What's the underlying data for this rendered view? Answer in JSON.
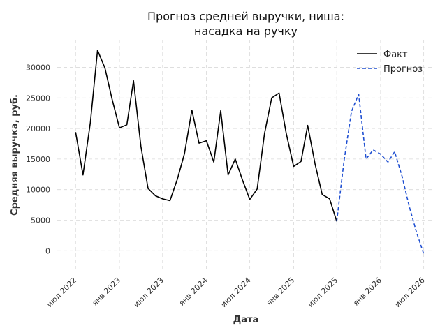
{
  "chart_data": {
    "type": "line",
    "title_line1": "Прогноз средней выручки, ниша:",
    "title_line2": "насадка на ручку",
    "xlabel": "Дата",
    "ylabel": "Средняя выручка, руб.",
    "ylim": [
      -3500,
      34500
    ],
    "yticks": [
      0,
      5000,
      10000,
      15000,
      20000,
      25000,
      30000
    ],
    "xlim": [
      "2022-04-15",
      "2026-08-15"
    ],
    "xticks": [
      {
        "date": "2022-07-01",
        "label": "июл 2022"
      },
      {
        "date": "2023-01-01",
        "label": "янв 2023"
      },
      {
        "date": "2023-07-01",
        "label": "июл 2023"
      },
      {
        "date": "2024-01-01",
        "label": "янв 2024"
      },
      {
        "date": "2024-07-01",
        "label": "июл 2024"
      },
      {
        "date": "2025-01-01",
        "label": "янв 2025"
      },
      {
        "date": "2025-07-01",
        "label": "июл 2025"
      },
      {
        "date": "2026-01-01",
        "label": "янв 2026"
      },
      {
        "date": "2026-07-01",
        "label": "июл 2026"
      }
    ],
    "grid": true,
    "legend_position": "top-right",
    "series": [
      {
        "name": "Факт",
        "style": "solid",
        "color": "#000000",
        "points": [
          [
            "2022-07-01",
            19400
          ],
          [
            "2022-08-01",
            12400
          ],
          [
            "2022-09-01",
            21000
          ],
          [
            "2022-10-01",
            32800
          ],
          [
            "2022-11-01",
            29900
          ],
          [
            "2022-12-01",
            24800
          ],
          [
            "2023-01-01",
            20100
          ],
          [
            "2023-02-01",
            20600
          ],
          [
            "2023-03-01",
            27800
          ],
          [
            "2023-04-01",
            17100
          ],
          [
            "2023-05-01",
            10200
          ],
          [
            "2023-06-01",
            9000
          ],
          [
            "2023-07-01",
            8500
          ],
          [
            "2023-08-01",
            8200
          ],
          [
            "2023-09-01",
            11700
          ],
          [
            "2023-10-01",
            15900
          ],
          [
            "2023-11-01",
            23000
          ],
          [
            "2023-12-01",
            17600
          ],
          [
            "2024-01-01",
            18000
          ],
          [
            "2024-02-01",
            14500
          ],
          [
            "2024-03-01",
            22900
          ],
          [
            "2024-04-01",
            12400
          ],
          [
            "2024-05-01",
            15000
          ],
          [
            "2024-06-01",
            11500
          ],
          [
            "2024-07-01",
            8400
          ],
          [
            "2024-08-01",
            10100
          ],
          [
            "2024-09-01",
            19200
          ],
          [
            "2024-10-01",
            25000
          ],
          [
            "2024-11-01",
            25800
          ],
          [
            "2024-12-01",
            19200
          ],
          [
            "2025-01-01",
            13800
          ],
          [
            "2025-02-01",
            14600
          ],
          [
            "2025-03-01",
            20500
          ],
          [
            "2025-04-01",
            14200
          ],
          [
            "2025-05-01",
            9200
          ],
          [
            "2025-06-01",
            8500
          ],
          [
            "2025-07-01",
            4800
          ]
        ]
      },
      {
        "name": "Прогноз",
        "style": "dashed",
        "color": "#1f4fd1",
        "points": [
          [
            "2025-07-01",
            4800
          ],
          [
            "2025-08-01",
            14800
          ],
          [
            "2025-09-01",
            22800
          ],
          [
            "2025-10-01",
            25600
          ],
          [
            "2025-11-01",
            15000
          ],
          [
            "2025-12-01",
            16500
          ],
          [
            "2026-01-01",
            15800
          ],
          [
            "2026-02-01",
            14500
          ],
          [
            "2026-03-01",
            16200
          ],
          [
            "2026-04-01",
            12200
          ],
          [
            "2026-05-01",
            7300
          ],
          [
            "2026-06-01",
            3000
          ],
          [
            "2026-07-01",
            -500
          ]
        ]
      }
    ]
  }
}
